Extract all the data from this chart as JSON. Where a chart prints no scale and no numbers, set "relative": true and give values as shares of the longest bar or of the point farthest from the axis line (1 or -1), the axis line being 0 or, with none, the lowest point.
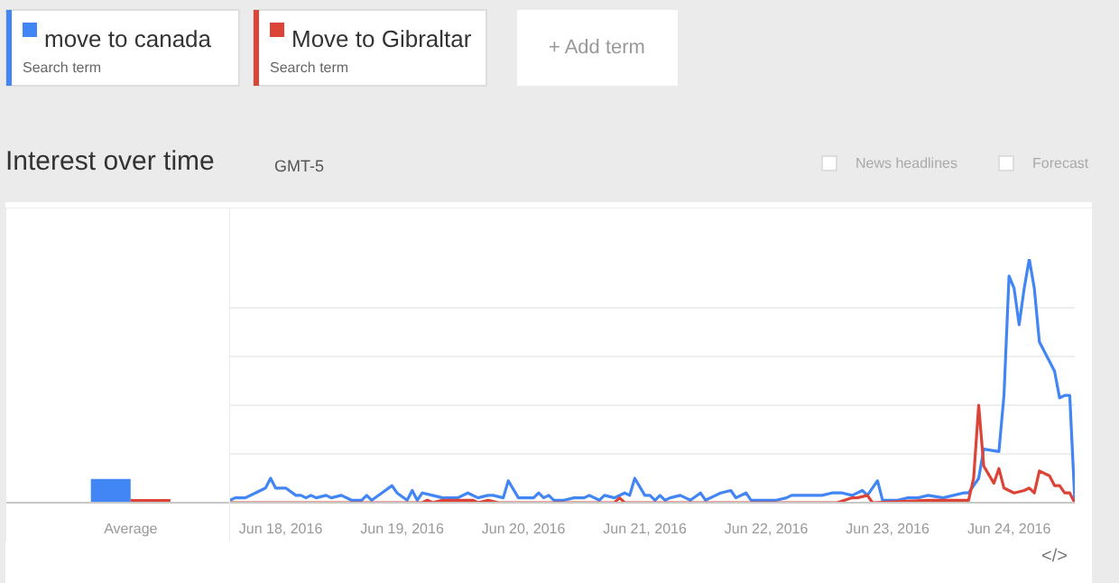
{
  "chart_data": [
    {
      "type": "bar",
      "categories": [
        "Average"
      ],
      "relative": true,
      "series": [
        {
          "color": "#4285f4",
          "values": [
            1
          ]
        },
        {
          "color": "#db4437",
          "values": [
            0.15
          ]
        }
      ]
    },
    {
      "type": "line",
      "title": "Interest over time",
      "subtitle": "GMT-5",
      "relative": true,
      "grid": "y",
      "legend": "top",
      "line_style": "solid",
      "annotations": [
        "Search term",
        "Search term",
        "+ Add term",
        "News headlines",
        "Forecast",
        "</>"
      ],
      "xlim": [
        "2016-06-17T14:00",
        "2016-06-24T13:00"
      ],
      "xticks": [
        {
          "value": "2016-06-18",
          "label": "Jun 18, 2016"
        },
        {
          "value": "2016-06-19",
          "label": "Jun 19, 2016"
        },
        {
          "value": "2016-06-20",
          "label": "Jun 20, 2016"
        },
        {
          "value": "2016-06-21",
          "label": "Jun 21, 2016"
        },
        {
          "value": "2016-06-22",
          "label": "Jun 22, 2016"
        },
        {
          "value": "2016-06-23",
          "label": "Jun 23, 2016"
        },
        {
          "value": "2016-06-24",
          "label": "Jun 24, 2016"
        }
      ],
      "series": [
        {
          "name": "move to canada",
          "color": "#4285f4",
          "x": [
            "2016-06-17T14:00",
            "2016-06-17T15:00",
            "2016-06-17T17:00",
            "2016-06-17T19:00",
            "2016-06-17T21:00",
            "2016-06-17T22:00",
            "2016-06-17T23:00",
            "2016-06-18T01:00",
            "2016-06-18T03:00",
            "2016-06-18T04:00",
            "2016-06-18T05:00",
            "2016-06-18T06:00",
            "2016-06-18T07:00",
            "2016-06-18T09:00",
            "2016-06-18T10:00",
            "2016-06-18T12:00",
            "2016-06-18T14:00",
            "2016-06-18T16:00",
            "2016-06-18T17:00",
            "2016-06-18T18:00",
            "2016-06-18T20:00",
            "2016-06-18T22:00",
            "2016-06-18T23:00",
            "2016-06-19T01:00",
            "2016-06-19T02:00",
            "2016-06-19T03:00",
            "2016-06-19T04:00",
            "2016-06-19T06:00",
            "2016-06-19T08:00",
            "2016-06-19T11:00",
            "2016-06-19T13:00",
            "2016-06-19T15:00",
            "2016-06-19T17:00",
            "2016-06-19T18:00",
            "2016-06-19T20:00",
            "2016-06-19T21:00",
            "2016-06-19T23:00",
            "2016-06-20T02:00",
            "2016-06-20T03:00",
            "2016-06-20T04:00",
            "2016-06-20T05:00",
            "2016-06-20T06:00",
            "2016-06-20T08:00",
            "2016-06-20T10:00",
            "2016-06-20T12:00",
            "2016-06-20T13:00",
            "2016-06-20T15:00",
            "2016-06-20T16:00",
            "2016-06-20T18:00",
            "2016-06-20T20:00",
            "2016-06-20T21:00",
            "2016-06-20T22:00",
            "2016-06-21T00:00",
            "2016-06-21T01:00",
            "2016-06-21T02:00",
            "2016-06-21T03:00",
            "2016-06-21T04:00",
            "2016-06-21T05:00",
            "2016-06-21T07:00",
            "2016-06-21T09:00",
            "2016-06-21T11:00",
            "2016-06-21T12:00",
            "2016-06-21T14:00",
            "2016-06-21T15:00",
            "2016-06-21T17:00",
            "2016-06-21T18:00",
            "2016-06-21T20:00",
            "2016-06-21T21:00",
            "2016-06-21T23:00",
            "2016-06-22T02:00",
            "2016-06-22T04:00",
            "2016-06-22T05:00",
            "2016-06-22T09:00",
            "2016-06-22T11:00",
            "2016-06-22T13:00",
            "2016-06-22T15:00",
            "2016-06-22T17:00",
            "2016-06-22T19:00",
            "2016-06-22T20:00",
            "2016-06-22T22:00",
            "2016-06-22T23:00",
            "2016-06-23T02:00",
            "2016-06-23T04:00",
            "2016-06-23T06:00",
            "2016-06-23T08:00",
            "2016-06-23T11:00",
            "2016-06-23T13:00",
            "2016-06-23T15:00",
            "2016-06-23T16:00",
            "2016-06-23T18:00",
            "2016-06-23T19:00",
            "2016-06-23T22:00",
            "2016-06-23T23:00",
            "2016-06-24T00:00",
            "2016-06-24T01:00",
            "2016-06-24T02:00",
            "2016-06-24T03:00",
            "2016-06-24T04:00",
            "2016-06-24T05:00",
            "2016-06-24T06:00",
            "2016-06-24T09:00",
            "2016-06-24T10:00",
            "2016-06-24T11:00",
            "2016-06-24T12:00",
            "2016-06-24T13:00"
          ],
          "values": [
            0.01,
            0.02,
            0.02,
            0.04,
            0.06,
            0.1,
            0.06,
            0.06,
            0.03,
            0.03,
            0.02,
            0.03,
            0.02,
            0.03,
            0.02,
            0.03,
            0.01,
            0.01,
            0.03,
            0.01,
            0.04,
            0.07,
            0.04,
            0.01,
            0.05,
            0.01,
            0.04,
            0.03,
            0.02,
            0.02,
            0.04,
            0.02,
            0.03,
            0.03,
            0.02,
            0.09,
            0.02,
            0.02,
            0.04,
            0.02,
            0.03,
            0.01,
            0.01,
            0.02,
            0.02,
            0.03,
            0.01,
            0.03,
            0.02,
            0.04,
            0.03,
            0.1,
            0.03,
            0.03,
            0.01,
            0.03,
            0.01,
            0.02,
            0.03,
            0.01,
            0.04,
            0.01,
            0.03,
            0.04,
            0.05,
            0.02,
            0.04,
            0.01,
            0.01,
            0.01,
            0.02,
            0.03,
            0.03,
            0.03,
            0.04,
            0.04,
            0.03,
            0.05,
            0.03,
            0.09,
            0.01,
            0.01,
            0.02,
            0.02,
            0.03,
            0.02,
            0.03,
            0.04,
            0.04,
            0.1,
            0.22,
            0.21,
            0.44,
            0.93,
            0.88,
            0.73,
            0.88,
            1.0,
            0.88,
            0.66,
            0.54,
            0.43,
            0.44,
            0.44,
            0.01
          ]
        },
        {
          "name": "Move to Gibraltar",
          "color": "#db4437",
          "x": [
            "2016-06-17T14:00",
            "2016-06-19T04:00",
            "2016-06-19T05:00",
            "2016-06-19T06:00",
            "2016-06-19T08:00",
            "2016-06-19T14:00",
            "2016-06-19T15:00",
            "2016-06-19T17:00",
            "2016-06-19T19:00",
            "2016-06-20T18:00",
            "2016-06-20T19:00",
            "2016-06-20T20:00",
            "2016-06-22T14:00",
            "2016-06-22T17:00",
            "2016-06-22T18:00",
            "2016-06-22T20:00",
            "2016-06-22T21:00",
            "2016-06-23T08:00",
            "2016-06-23T16:00",
            "2016-06-23T17:00",
            "2016-06-23T18:00",
            "2016-06-23T19:00",
            "2016-06-23T21:00",
            "2016-06-23T22:00",
            "2016-06-23T23:00",
            "2016-06-24T01:00",
            "2016-06-24T03:00",
            "2016-06-24T04:00",
            "2016-06-24T05:00",
            "2016-06-24T06:00",
            "2016-06-24T08:00",
            "2016-06-24T09:00",
            "2016-06-24T10:00",
            "2016-06-24T11:00",
            "2016-06-24T12:00",
            "2016-06-24T13:00"
          ],
          "values": [
            0,
            0,
            0.01,
            0,
            0.01,
            0.01,
            0,
            0.01,
            0,
            0,
            0.02,
            0,
            0,
            0.02,
            0.02,
            0.03,
            0,
            0.01,
            0.01,
            0.1,
            0.4,
            0.15,
            0.08,
            0.14,
            0.06,
            0.04,
            0.05,
            0.06,
            0.04,
            0.13,
            0.11,
            0.07,
            0.07,
            0.04,
            0.04,
            0
          ]
        }
      ]
    }
  ]
}
